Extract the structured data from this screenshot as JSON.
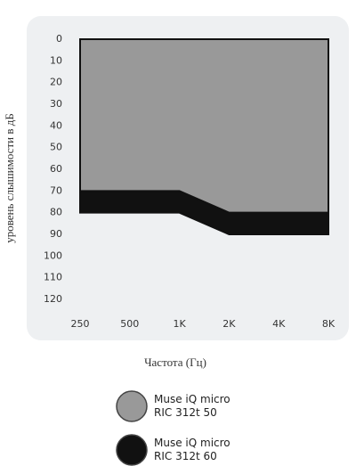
{
  "chart_data": {
    "type": "range-area",
    "y_label": "уровень слышимости в дБ",
    "x_label": "Частота (Гц)",
    "categories": [
      "250",
      "500",
      "1K",
      "2K",
      "4K",
      "8K"
    ],
    "series": [
      {
        "name": "Muse iQ micro\nRIC 312t 60",
        "color": "#111111",
        "values": [
          80,
          80,
          80,
          90,
          90,
          90
        ]
      },
      {
        "name": "Muse iQ micro\nRIC 312t 50",
        "color": "#999999",
        "values": [
          70,
          70,
          70,
          80,
          80,
          80
        ]
      }
    ],
    "ylim": [
      0,
      120
    ],
    "y_inverted": true,
    "yticks": [
      0,
      10,
      20,
      30,
      40,
      50,
      60,
      70,
      80,
      90,
      100,
      110,
      120
    ]
  }
}
